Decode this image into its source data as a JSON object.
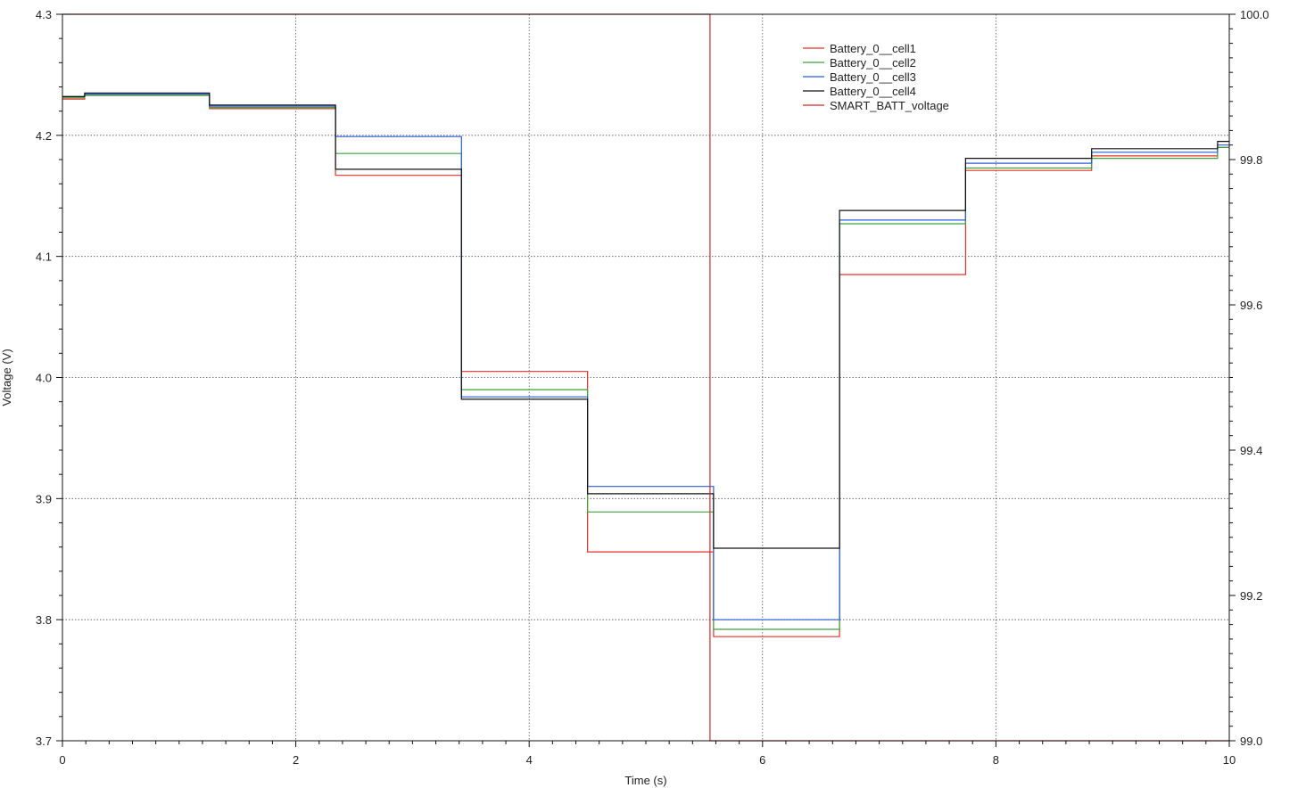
{
  "chart_data": {
    "type": "line",
    "step": true,
    "title": "",
    "xlabel": "Time (s)",
    "ylabel": "Voltage (V)",
    "xlim": [
      0,
      10
    ],
    "ylim": [
      3.7,
      4.3
    ],
    "y2lim": [
      99.0,
      100.0
    ],
    "grid": true,
    "legend_position": "top-right",
    "x_ticks": [
      "0",
      "2",
      "4",
      "6",
      "8",
      "10"
    ],
    "y_ticks": [
      "3.7",
      "3.8",
      "3.9",
      "4.0",
      "4.1",
      "4.2",
      "4.3"
    ],
    "y2_ticks": [
      "99.0",
      "99.2",
      "99.4",
      "99.6",
      "99.8",
      "100.0"
    ],
    "x_tick_values": [
      0,
      2,
      4,
      6,
      8,
      10
    ],
    "y_tick_values": [
      3.7,
      3.8,
      3.9,
      4.0,
      4.1,
      4.2,
      4.3
    ],
    "y2_tick_values": [
      99.0,
      99.2,
      99.4,
      99.6,
      99.8,
      100.0
    ],
    "series": [
      {
        "name": "Battery_0__cell1",
        "color": "#e8312a",
        "axis": "left",
        "x": [
          0,
          0.19,
          1.26,
          2.34,
          3.42,
          4.5,
          5.58,
          6.66,
          7.74,
          8.82,
          9.9,
          10
        ],
        "y": [
          4.23,
          4.233,
          4.222,
          4.167,
          4.005,
          3.856,
          3.786,
          4.085,
          4.171,
          4.183,
          4.19,
          4.19
        ]
      },
      {
        "name": "Battery_0__cell2",
        "color": "#3aa33a",
        "axis": "left",
        "x": [
          0,
          0.19,
          1.26,
          2.34,
          3.42,
          4.5,
          5.58,
          6.66,
          7.74,
          8.82,
          9.9,
          10
        ],
        "y": [
          4.231,
          4.233,
          4.223,
          4.185,
          3.99,
          3.889,
          3.792,
          4.127,
          4.173,
          4.181,
          4.19,
          4.19
        ]
      },
      {
        "name": "Battery_0__cell3",
        "color": "#2a5bd8",
        "axis": "left",
        "x": [
          0,
          0.19,
          1.26,
          2.34,
          3.42,
          4.5,
          5.58,
          6.66,
          7.74,
          8.82,
          9.9,
          10
        ],
        "y": [
          4.232,
          4.234,
          4.224,
          4.199,
          3.984,
          3.91,
          3.8,
          4.13,
          4.177,
          4.186,
          4.192,
          4.192
        ]
      },
      {
        "name": "Battery_0__cell4",
        "color": "#111111",
        "axis": "left",
        "x": [
          0,
          0.19,
          1.26,
          2.34,
          3.42,
          4.5,
          5.58,
          6.66,
          7.74,
          8.82,
          9.9,
          10
        ],
        "y": [
          4.232,
          4.235,
          4.225,
          4.172,
          3.982,
          3.904,
          3.859,
          4.138,
          4.181,
          4.189,
          4.195,
          4.195
        ]
      },
      {
        "name": "SMART_BATT_voltage",
        "color": "#d02828",
        "axis": "right",
        "x": [
          0,
          5.55,
          10
        ],
        "y": [
          100.0,
          99.0,
          99.0
        ]
      }
    ]
  }
}
